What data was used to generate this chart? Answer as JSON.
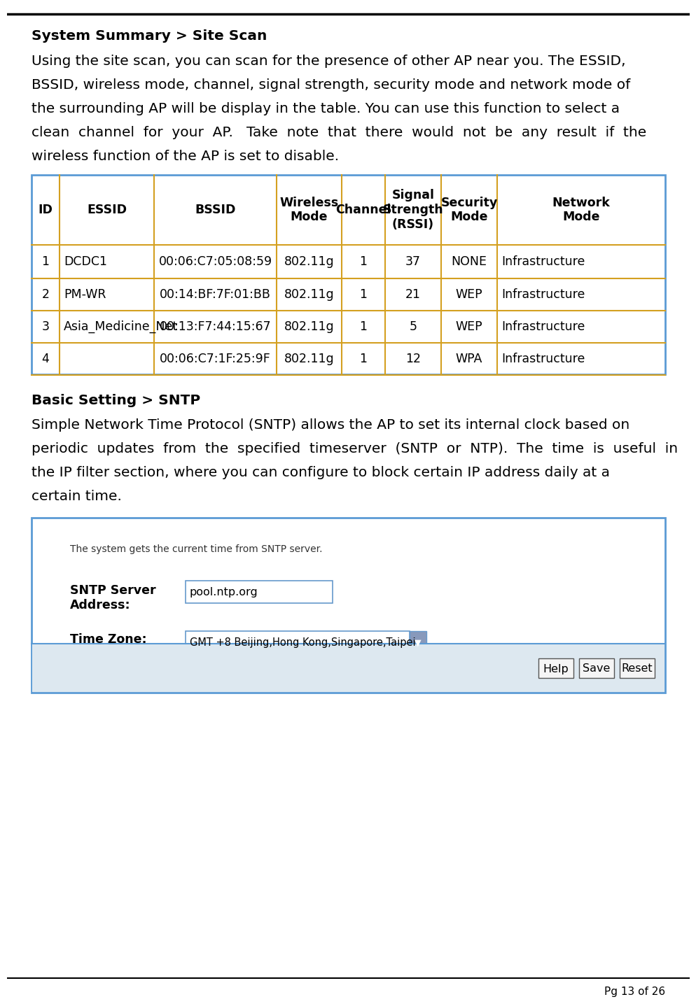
{
  "bg_color": "#ffffff",
  "page_footer": "Pg 13 of 26",
  "section1_title": "System Summary > Site Scan",
  "table_headers": [
    "ID",
    "ESSID",
    "BSSID",
    "Wireless\nMode",
    "Channel",
    "Signal\nStrength\n(RSSI)",
    "Security\nMode",
    "Network\nMode"
  ],
  "table_rows": [
    [
      "1",
      "DCDC1",
      "00:06:C7:05:08:59",
      "802.11g",
      "1",
      "37",
      "NONE",
      "Infrastructure"
    ],
    [
      "2",
      "PM-WR",
      "00:14:BF:7F:01:BB",
      "802.11g",
      "1",
      "21",
      "WEP",
      "Infrastructure"
    ],
    [
      "3",
      "Asia_Medicine_Net",
      "00:13:F7:44:15:67",
      "802.11g",
      "1",
      "5",
      "WEP",
      "Infrastructure"
    ],
    [
      "4",
      "",
      "00:06:C7:1F:25:9F",
      "802.11g",
      "1",
      "12",
      "WPA",
      "Infrastructure"
    ]
  ],
  "table_outer_border": "#5b9bd5",
  "table_inner_border": "#d4a020",
  "table_bg": "#ffffff",
  "section2_title": "Basic Setting > SNTP",
  "sntp_note": "The system gets the current time from SNTP server.",
  "sntp_label1": "SNTP Server\nAddress:",
  "sntp_value1": "pool.ntp.org",
  "sntp_label2": "Time Zone:",
  "sntp_value2": "GMT +8 Beijing,Hong Kong,Singapore,Taipei",
  "sntp_buttons": [
    "Help",
    "Save",
    "Reset"
  ],
  "sntp_outer_border": "#5b9bd5",
  "body_font_size": 14.5,
  "title_font_size": 14.5,
  "table_header_font_size": 12.5,
  "table_body_font_size": 12.5
}
